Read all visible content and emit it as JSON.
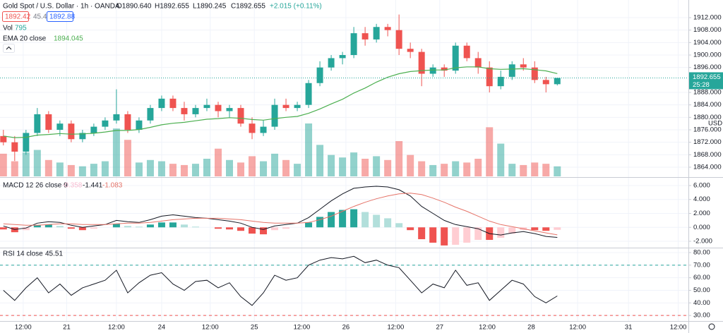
{
  "chart_data": [
    {
      "type": "candlestick",
      "title": "Gold Spot / U.S. Dollar · 1h · OANDA",
      "ohlc_labels": [
        "O1890.640",
        "H1892.655",
        "L1890.245",
        "C1892.655",
        "+2.015 (+0.11%)"
      ],
      "bid": "1892.42",
      "spread": "45.4",
      "ask": "1892.88",
      "volume_label": "Vol",
      "volume_last": "795",
      "ema_label": "EMA 20 close",
      "ema_last": "1894.045",
      "currency": "USD",
      "last_price": "1892.655",
      "countdown": "25:28",
      "open": [
        1874,
        1872,
        1869,
        1875,
        1881,
        1876,
        1878,
        1873,
        1875,
        1877,
        1879,
        1881,
        1876,
        1879,
        1883,
        1886,
        1883,
        1881,
        1883,
        1884,
        1882,
        1883,
        1878,
        1875,
        1877,
        1884,
        1883,
        1884,
        1891,
        1896,
        1899,
        1900,
        1907,
        1905,
        1909,
        1908,
        1902,
        1901,
        1894,
        1896,
        1895,
        1903,
        1899,
        1896,
        1890,
        1893,
        1897,
        1896,
        1892,
        1890.64
      ],
      "high": [
        1876,
        1874,
        1876,
        1883,
        1882,
        1879,
        1879,
        1876,
        1878,
        1880,
        1889,
        1882,
        1880,
        1884,
        1887,
        1887,
        1885,
        1884,
        1886,
        1885,
        1884,
        1884,
        1880,
        1879,
        1886,
        1886,
        1885,
        1892,
        1898,
        1900,
        1901,
        1909,
        1909,
        1910,
        1910,
        1913,
        1904,
        1902,
        1897,
        1897,
        1904,
        1904,
        1901,
        1898,
        1895,
        1898,
        1899,
        1898,
        1893,
        1892.655
      ],
      "low": [
        1871,
        1866,
        1868,
        1874,
        1875,
        1874,
        1872,
        1872,
        1874,
        1876,
        1878,
        1875,
        1875,
        1878,
        1882,
        1882,
        1879,
        1880,
        1882,
        1880,
        1880,
        1877,
        1873,
        1874,
        1876,
        1882,
        1882,
        1883,
        1890,
        1895,
        1897,
        1899,
        1903,
        1904,
        1906,
        1900,
        1899,
        1890,
        1893,
        1893,
        1894,
        1898,
        1894,
        1888,
        1889,
        1892,
        1895,
        1891,
        1888,
        1890.245
      ],
      "close": [
        1872,
        1869,
        1875,
        1881,
        1876,
        1878,
        1873,
        1875,
        1877,
        1879,
        1881,
        1876,
        1879,
        1883,
        1886,
        1883,
        1881,
        1883,
        1884,
        1882,
        1883,
        1878,
        1875,
        1877,
        1884,
        1883,
        1884,
        1891,
        1896,
        1899,
        1900,
        1907,
        1905,
        1909,
        1908,
        1902,
        1901,
        1894,
        1896,
        1895,
        1903,
        1899,
        1896,
        1890,
        1893,
        1897,
        1896,
        1892,
        1890.64,
        1892.655
      ],
      "volume": [
        1800,
        1200,
        1900,
        2100,
        1300,
        1100,
        900,
        800,
        1000,
        1200,
        3800,
        2900,
        1100,
        1300,
        1200,
        1000,
        900,
        1000,
        1400,
        2200,
        1300,
        1100,
        1600,
        1200,
        1800,
        1300,
        1000,
        4200,
        2500,
        1700,
        1500,
        1900,
        1400,
        1600,
        1300,
        2800,
        1700,
        1200,
        900,
        1000,
        1200,
        1100,
        1400,
        3900,
        2600,
        1000,
        900,
        1100,
        1000,
        795
      ],
      "ema": [
        1874,
        1873.5,
        1873.6,
        1874.3,
        1874.5,
        1874.8,
        1874.6,
        1874.7,
        1874.9,
        1875.3,
        1875.8,
        1875.8,
        1876.1,
        1876.8,
        1877.6,
        1878.1,
        1878.4,
        1878.9,
        1879.4,
        1879.6,
        1879.9,
        1879.7,
        1879.3,
        1879.1,
        1879.6,
        1880,
        1880.3,
        1881.3,
        1882.7,
        1884.3,
        1885.8,
        1887.8,
        1889.4,
        1891.3,
        1892.9,
        1894.0,
        1894.7,
        1895.0,
        1895.2,
        1895.2,
        1895.9,
        1896.2,
        1896.2,
        1895.6,
        1895.4,
        1895.5,
        1895.6,
        1895.3,
        1894.9,
        1894.045
      ],
      "xlim": [
        -0.3,
        60.6
      ],
      "xticks": [
        {
          "value": 1.75,
          "label": "12:00"
        },
        {
          "value": 5.6,
          "label": "21"
        },
        {
          "value": 10,
          "label": "12:00"
        },
        {
          "value": 14,
          "label": "24"
        },
        {
          "value": 18.3,
          "label": "12:00"
        },
        {
          "value": 22.2,
          "label": "25"
        },
        {
          "value": 26.4,
          "label": "12:00"
        },
        {
          "value": 30.3,
          "label": "26"
        },
        {
          "value": 34.7,
          "label": "12:00"
        },
        {
          "value": 38.6,
          "label": "27"
        },
        {
          "value": 42.8,
          "label": "12:00"
        },
        {
          "value": 46.7,
          "label": "28"
        },
        {
          "value": 50.8,
          "label": "12:00"
        },
        {
          "value": 55.3,
          "label": "31"
        },
        {
          "value": 59.7,
          "label": "12:00"
        }
      ],
      "ylim": [
        1861.06,
        1917.66
      ],
      "yticks": [
        {
          "value": 1864,
          "label": "1864.000"
        },
        {
          "value": 1868,
          "label": "1868.000"
        },
        {
          "value": 1872,
          "label": "1872.000"
        },
        {
          "value": 1876,
          "label": "1876.000"
        },
        {
          "value": 1880,
          "label": "1880.000"
        },
        {
          "value": 1884,
          "label": "1884.000"
        },
        {
          "value": 1888,
          "label": "1888.000"
        },
        {
          "value": 1896,
          "label": "1896.000"
        },
        {
          "value": 1900,
          "label": "1900.000"
        },
        {
          "value": 1904,
          "label": "1904.000"
        },
        {
          "value": 1908,
          "label": "1908.000"
        },
        {
          "value": 1912,
          "label": "1912.000"
        }
      ],
      "volume_ylim": [
        0,
        14000
      ],
      "up_color": "#26a69a",
      "down_color": "#ef5350",
      "ema_color": "#4caf50",
      "grid": true
    },
    {
      "type": "macd",
      "title": "MACD 12 26 close 9",
      "legend_values": [
        "-0.358",
        "-1.441",
        "-1.083"
      ],
      "histogram": [
        -0.3,
        -0.7,
        -0.4,
        0.3,
        0.4,
        0.2,
        -0.2,
        -0.4,
        -0.2,
        0.0,
        0.5,
        0.2,
        0.1,
        0.4,
        0.7,
        0.7,
        0.4,
        0.1,
        0.0,
        -0.2,
        -0.3,
        -0.5,
        -0.9,
        -1.0,
        -0.4,
        -0.2,
        0.0,
        0.7,
        1.5,
        2.2,
        2.5,
        2.6,
        2.2,
        1.8,
        1.3,
        0.6,
        -0.4,
        -1.7,
        -2.2,
        -2.6,
        -2.5,
        -2.2,
        -1.8,
        -1.8,
        -1.5,
        -0.9,
        -0.4,
        -0.4,
        -0.5,
        -0.358
      ],
      "macd": [
        0.2,
        -0.3,
        -0.1,
        0.6,
        0.8,
        0.7,
        0.3,
        0.0,
        0.2,
        0.4,
        1.0,
        0.8,
        0.7,
        1.1,
        1.6,
        1.8,
        1.6,
        1.4,
        1.3,
        1.1,
        0.9,
        0.6,
        0.0,
        -0.3,
        0.2,
        0.4,
        0.6,
        1.4,
        2.6,
        3.8,
        4.8,
        5.6,
        5.8,
        5.9,
        5.8,
        5.4,
        4.5,
        3.0,
        2.0,
        1.0,
        0.4,
        0.1,
        -0.2,
        -0.9,
        -1.1,
        -0.8,
        -0.6,
        -0.9,
        -1.3,
        -1.441
      ],
      "signal": [
        0.5,
        0.4,
        0.3,
        0.3,
        0.4,
        0.5,
        0.5,
        0.4,
        0.4,
        0.4,
        0.5,
        0.6,
        0.6,
        0.7,
        0.9,
        1.1,
        1.2,
        1.3,
        1.3,
        1.3,
        1.2,
        1.1,
        0.9,
        0.7,
        0.6,
        0.6,
        0.6,
        0.7,
        1.1,
        1.6,
        2.3,
        3.0,
        3.6,
        4.1,
        4.5,
        4.8,
        4.9,
        4.7,
        4.2,
        3.6,
        2.9,
        2.3,
        1.6,
        0.9,
        0.4,
        0.1,
        -0.2,
        -0.5,
        -0.8,
        -1.083
      ],
      "ylim": [
        -2.81,
        7.01
      ],
      "yticks": [
        {
          "value": 6,
          "label": "6.000"
        },
        {
          "value": 4,
          "label": "4.000"
        },
        {
          "value": 2,
          "label": "2.000"
        },
        {
          "value": 0,
          "label": "0.000"
        },
        {
          "value": -2,
          "label": "-2.000"
        }
      ],
      "macd_color": "#131722",
      "signal_color": "#e57368",
      "histogram_colors": [
        "#26a69a",
        "#b2dfdb",
        "#ffcdd2",
        "#ef5350"
      ]
    },
    {
      "type": "line",
      "title": "RSI 14 close",
      "legend_value": "45.51",
      "values": [
        50,
        42,
        52,
        60,
        48,
        55,
        46,
        52,
        55,
        58,
        66,
        48,
        56,
        62,
        64,
        55,
        50,
        57,
        58,
        52,
        56,
        45,
        38,
        48,
        62,
        58,
        60,
        70,
        74,
        76,
        75,
        77,
        72,
        74,
        70,
        68,
        58,
        48,
        55,
        52,
        66,
        54,
        56,
        42,
        50,
        58,
        55,
        45,
        40,
        45.51
      ],
      "ylim": [
        25.6,
        82.8
      ],
      "yticks": [
        {
          "value": 80,
          "label": "80.00"
        },
        {
          "value": 70,
          "label": "70.00"
        },
        {
          "value": 60,
          "label": "60.00"
        },
        {
          "value": 50,
          "label": "50.00"
        },
        {
          "value": 40,
          "label": "40.00"
        },
        {
          "value": 30,
          "label": "30.00"
        }
      ],
      "bands": [
        70,
        30
      ],
      "color": "#131722",
      "band_color": "#26a69a",
      "lower_band_color": "#ef5350"
    }
  ]
}
